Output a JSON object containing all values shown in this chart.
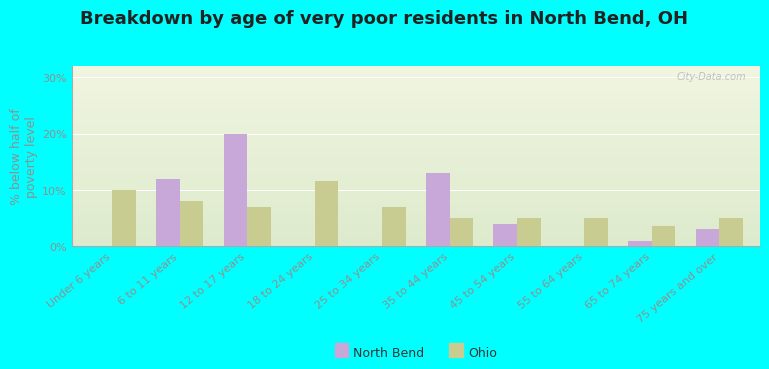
{
  "title": "Breakdown by age of very poor residents in North Bend, OH",
  "ylabel": "% below half of\npoverty level",
  "categories": [
    "Under 6 years",
    "6 to 11 years",
    "12 to 17 years",
    "18 to 24 years",
    "25 to 34 years",
    "35 to 44 years",
    "45 to 54 years",
    "55 to 64 years",
    "65 to 74 years",
    "75 years and over"
  ],
  "north_bend": [
    null,
    12,
    20,
    null,
    null,
    13,
    4,
    null,
    1,
    3
  ],
  "ohio": [
    10,
    8,
    7,
    11.5,
    7,
    5,
    5,
    5,
    3.5,
    5
  ],
  "north_bend_color": "#c8a8d8",
  "ohio_color": "#c8cc90",
  "outer_bg": "#00ffff",
  "plot_bg_top": "#f0f5e0",
  "plot_bg_bottom": "#ddeacc",
  "ylim": [
    0,
    32
  ],
  "yticks": [
    0,
    10,
    20,
    30
  ],
  "ytick_labels": [
    "0%",
    "10%",
    "20%",
    "30%"
  ],
  "bar_width": 0.35,
  "title_fontsize": 13,
  "axis_fontsize": 9,
  "tick_fontsize": 8,
  "legend_fontsize": 9,
  "watermark": "City-Data.com",
  "watermark_color": "#c0c0c0",
  "axis_color": "#909090",
  "label_color": "#606060"
}
